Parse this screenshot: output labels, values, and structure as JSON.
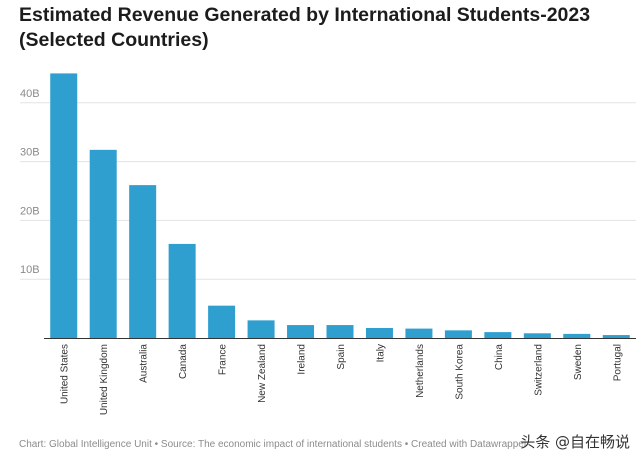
{
  "title_line1": "Estimated Revenue Generated by International Students-2023",
  "title_line2": "(Selected Countries)",
  "chart_data": {
    "type": "bar",
    "title": "Estimated Revenue Generated by International Students-2023 (Selected Countries)",
    "xlabel": "",
    "ylabel": "",
    "ylim": [
      0,
      50
    ],
    "yticks": [
      10,
      20,
      30,
      40
    ],
    "ytick_labels": [
      "10B",
      "20B",
      "30B",
      "40B"
    ],
    "grid": true,
    "bar_color": "#2f9fd0",
    "categories": [
      "United States",
      "United Kingdom",
      "Australia",
      "Canada",
      "France",
      "New Zealand",
      "Ireland",
      "Spain",
      "Italy",
      "Netherlands",
      "South Korea",
      "China",
      "Switzerland",
      "Sweden",
      "Portugal"
    ],
    "values": [
      45,
      32,
      26,
      16,
      5.5,
      3,
      2.2,
      2.2,
      1.7,
      1.6,
      1.3,
      1.0,
      0.8,
      0.7,
      0.5
    ]
  },
  "footer": "Chart: Global Intelligence Unit  • Source: The economic impact of international students • Created with Datawrapper",
  "watermark": "头条 @自在畅说"
}
